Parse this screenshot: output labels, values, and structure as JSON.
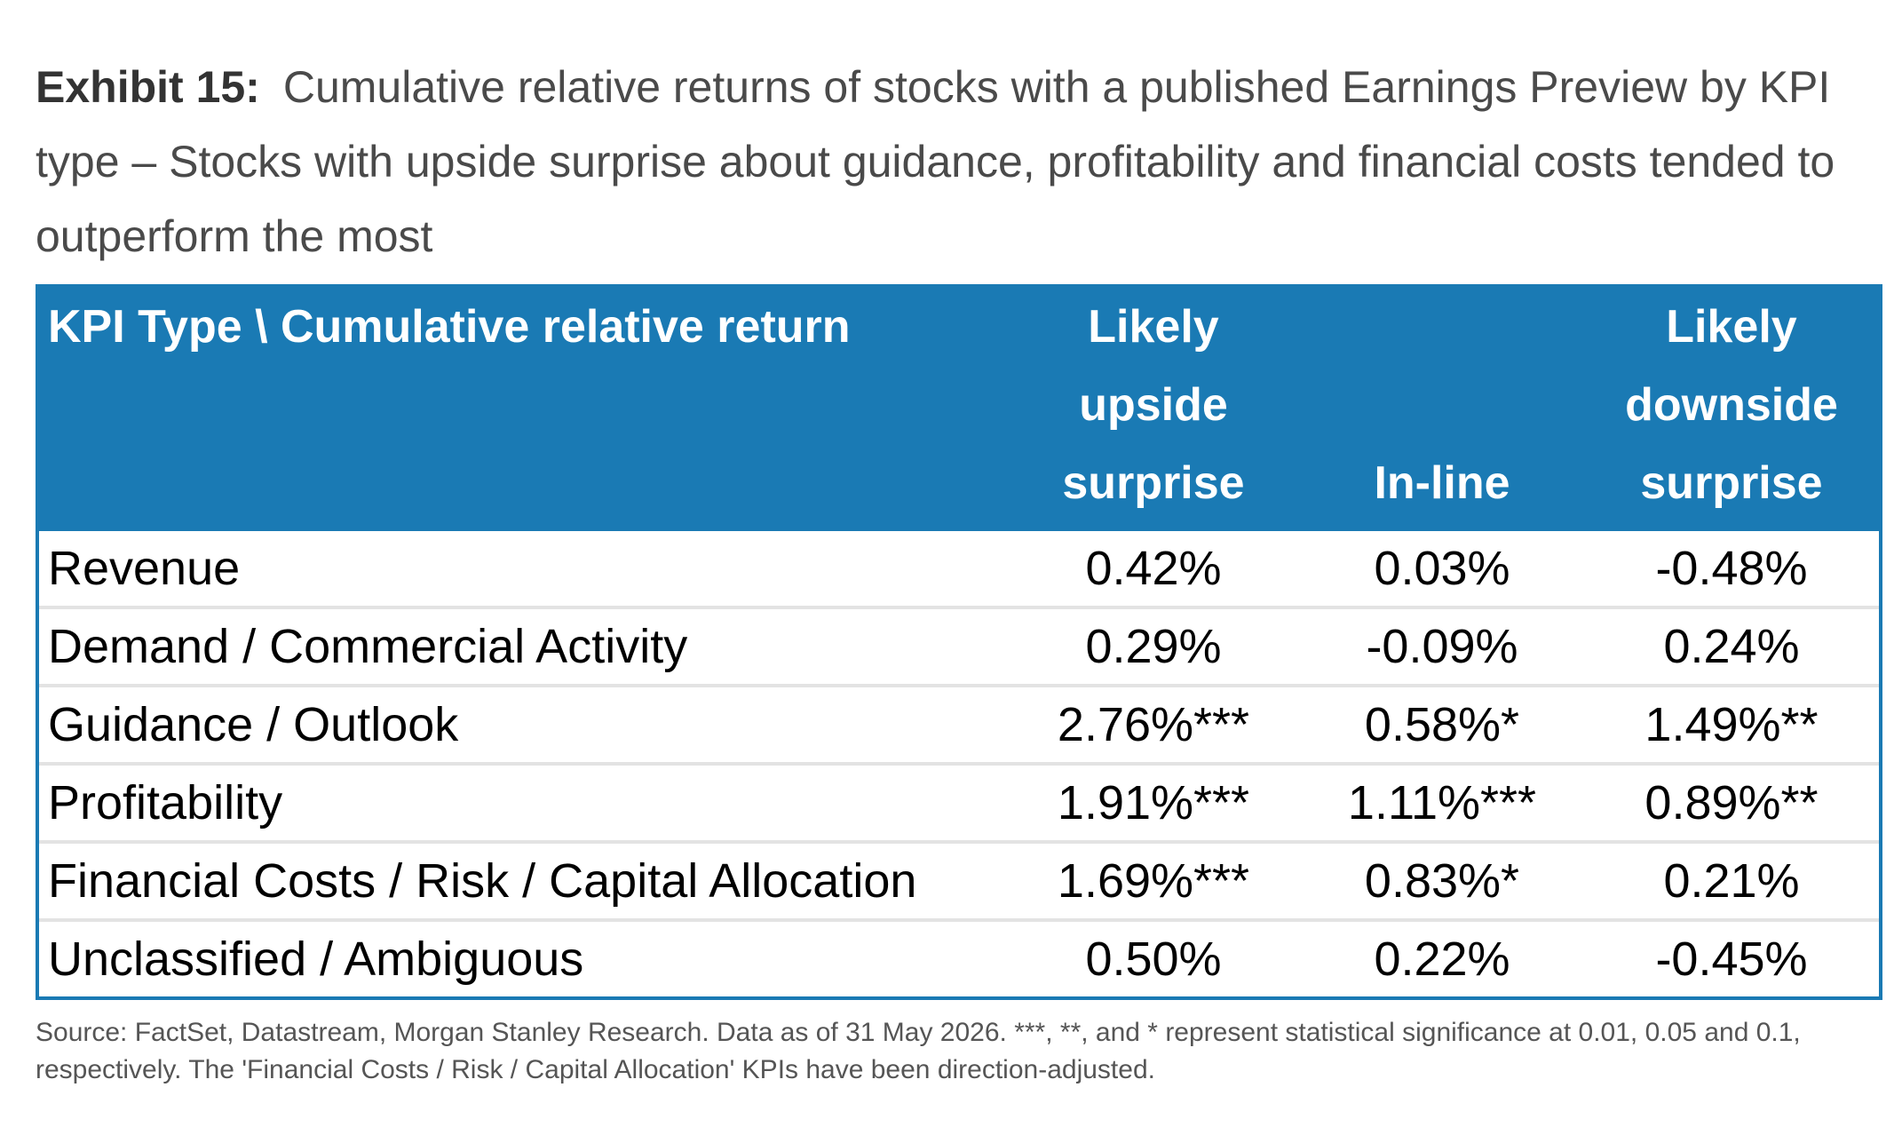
{
  "title": {
    "exhibit": "Exhibit 15:",
    "text": "Cumulative relative returns of stocks with a published Earnings Preview by KPI type – Stocks with upside surprise about guidance, profitability and financial costs tended to outperform the most"
  },
  "table": {
    "headers": {
      "kpi": "KPI Type \\ Cumulative relative return",
      "upside": "Likely upside surprise",
      "inline": "In-line",
      "downside": "Likely downside surprise"
    },
    "rows": [
      {
        "kpi": "Revenue",
        "upside": "0.42%",
        "inline": "0.03%",
        "downside": "-0.48%"
      },
      {
        "kpi": "Demand / Commercial Activity",
        "upside": "0.29%",
        "inline": "-0.09%",
        "downside": "0.24%"
      },
      {
        "kpi": "Guidance / Outlook",
        "upside": "2.76%***",
        "inline": "0.58%*",
        "downside": "1.49%**"
      },
      {
        "kpi": "Profitability",
        "upside": "1.91%***",
        "inline": "1.11%***",
        "downside": "0.89%**"
      },
      {
        "kpi": "Financial Costs / Risk / Capital Allocation",
        "upside": "1.69%***",
        "inline": "0.83%*",
        "downside": "0.21%"
      },
      {
        "kpi": "Unclassified / Ambiguous",
        "upside": "0.50%",
        "inline": "0.22%",
        "downside": "-0.45%"
      }
    ]
  },
  "source": "Source: FactSet, Datastream, Morgan Stanley Research. Data as of 31 May 2026. ***, **, and * represent statistical significance at 0.01, 0.05 and 0.1, respectively. The 'Financial Costs / Risk / Capital Allocation' KPIs have been direction-adjusted.",
  "colors": {
    "header_bg": "#1a7ab4",
    "header_text": "#ffffff",
    "row_divider": "#e3e3e3"
  }
}
